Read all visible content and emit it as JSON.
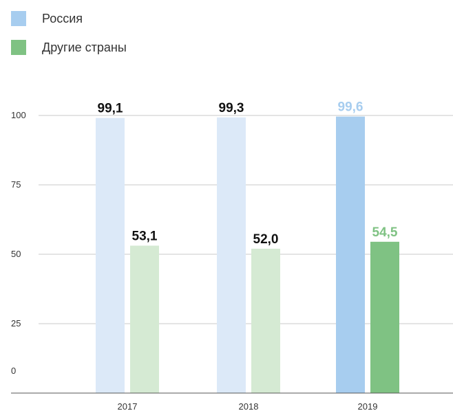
{
  "chart_data": {
    "type": "bar",
    "categories": [
      "2017",
      "2018",
      "2019"
    ],
    "series": [
      {
        "name": "Россия",
        "values": [
          99.1,
          99.3,
          99.6
        ],
        "labels": [
          "99,1",
          "99,3",
          "99,6"
        ],
        "colors": [
          "#dce9f8",
          "#dce9f8",
          "#a7cdef"
        ],
        "label_colors": [
          "#111111",
          "#111111",
          "#a7cdef"
        ]
      },
      {
        "name": "Другие страны",
        "values": [
          53.1,
          52.0,
          54.5
        ],
        "labels": [
          "53,1",
          "52,0",
          "54,5"
        ],
        "colors": [
          "#d5ead3",
          "#d5ead3",
          "#7fc283"
        ],
        "label_colors": [
          "#111111",
          "#111111",
          "#7fc283"
        ]
      }
    ],
    "legend": [
      {
        "label": "Россия",
        "color": "#a7cdef"
      },
      {
        "label": "Другие страны",
        "color": "#7fc283"
      }
    ],
    "yticks": [
      "0",
      "25",
      "50",
      "75",
      "100"
    ],
    "ylim": [
      0,
      100
    ],
    "grid": true,
    "legend_position": "top-left"
  }
}
